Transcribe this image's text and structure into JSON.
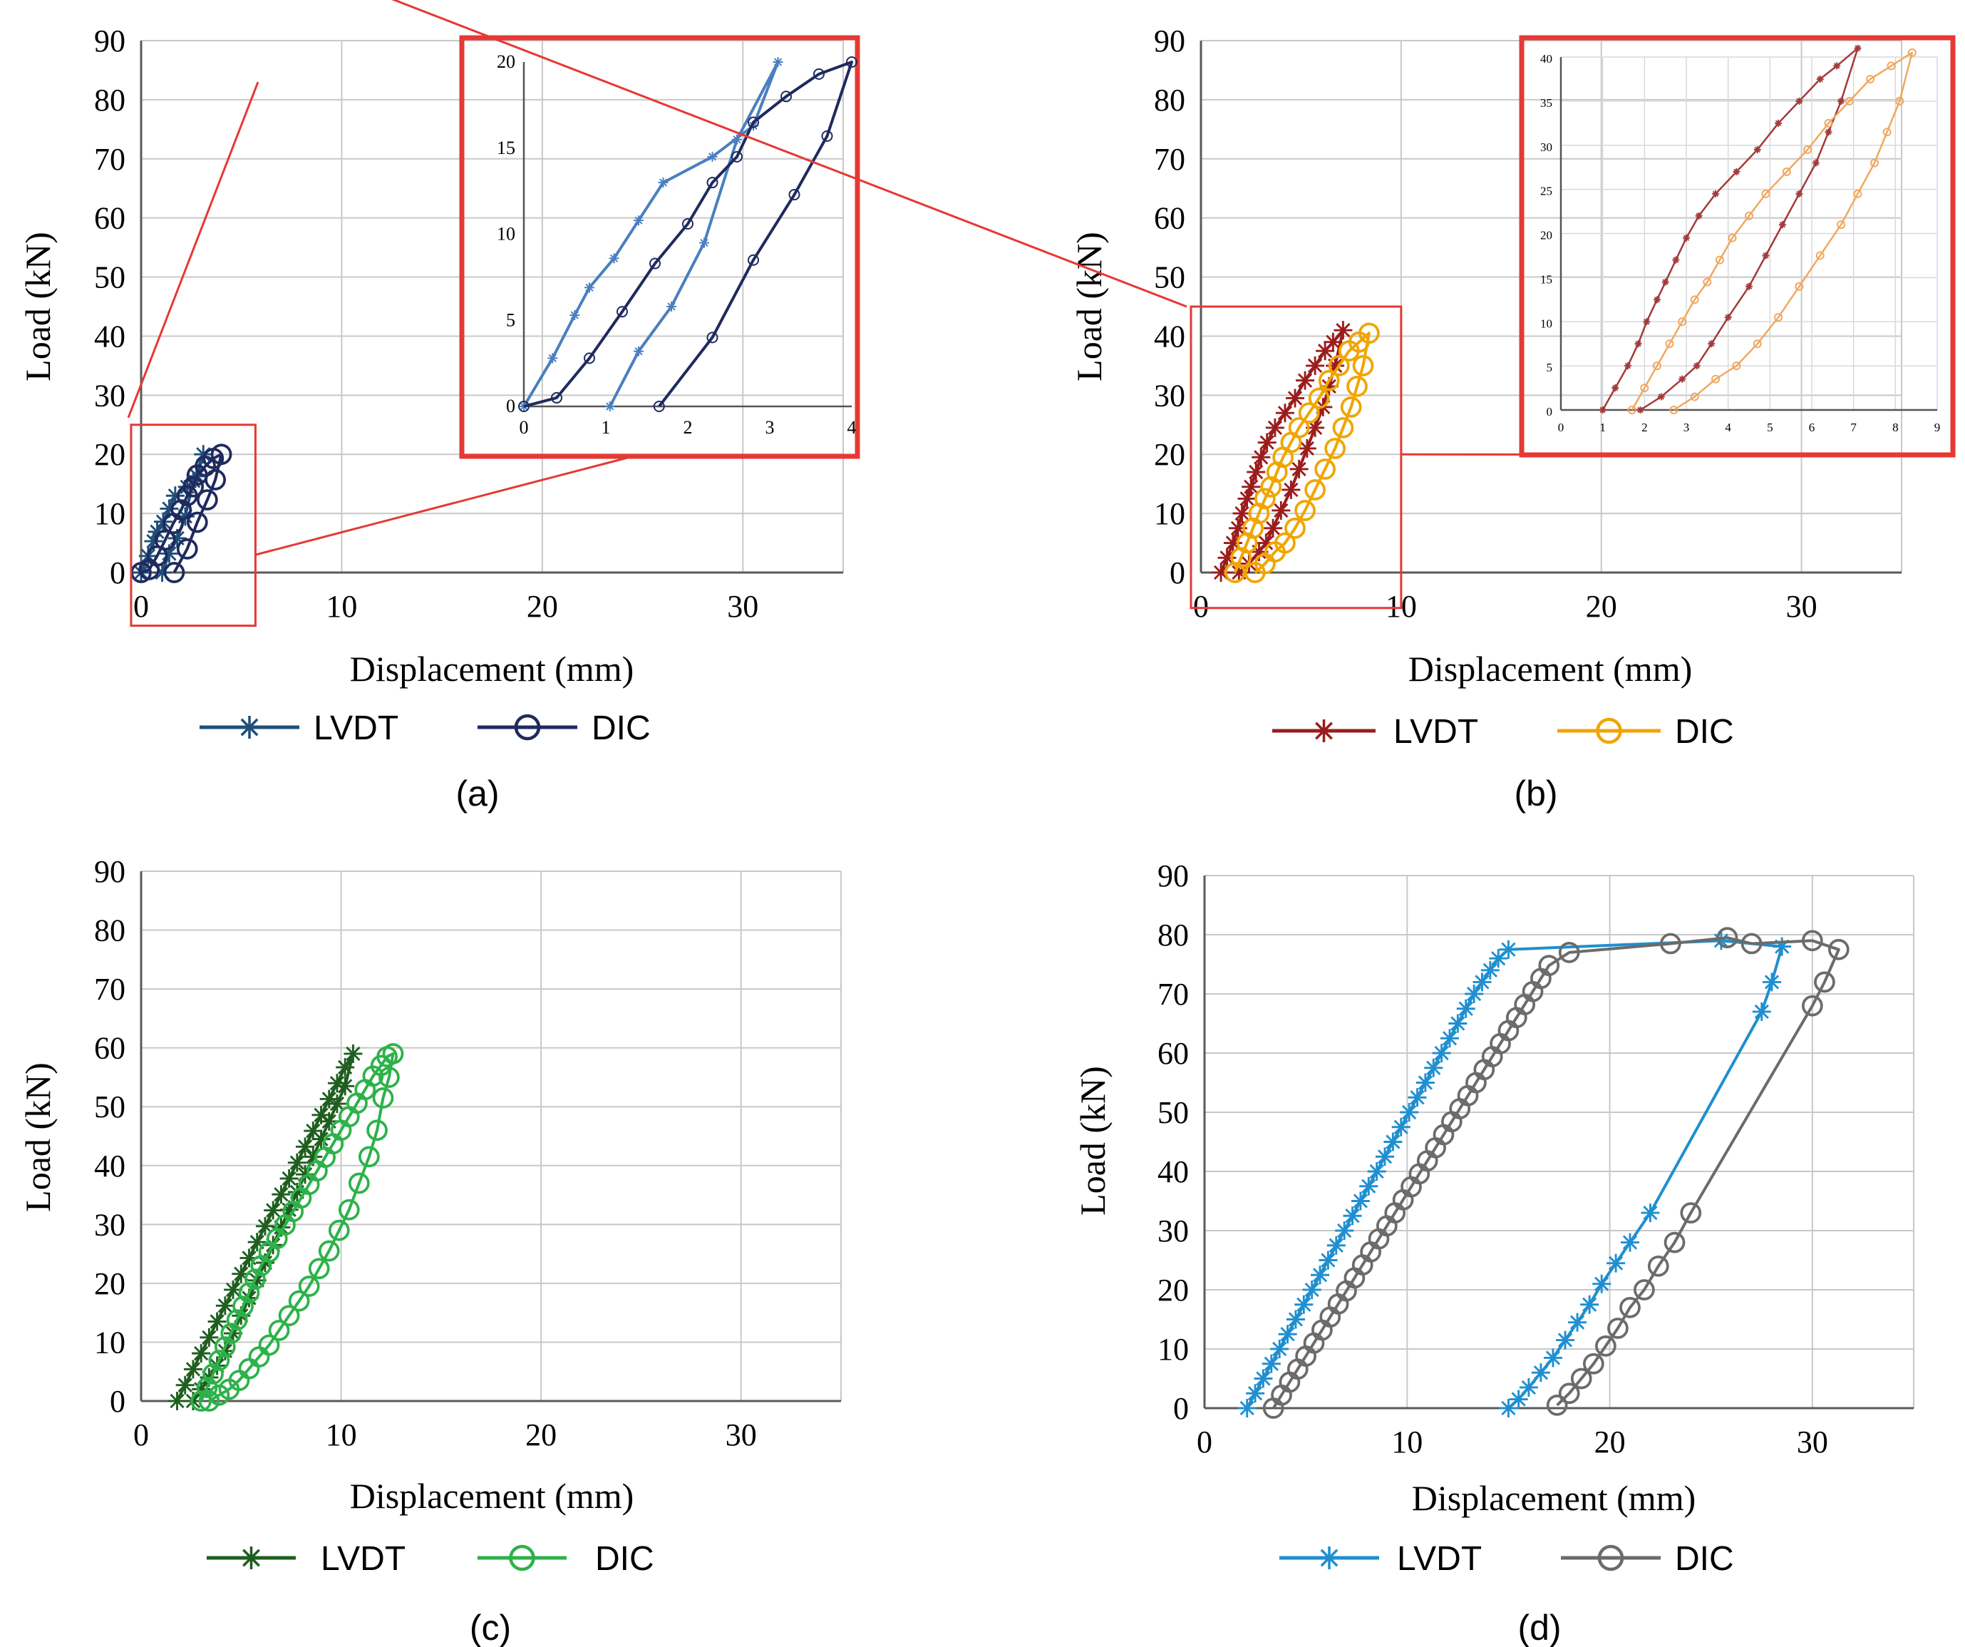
{
  "figure": {
    "captions": [
      "(a)",
      "(b)",
      "(c)",
      "(d)"
    ]
  },
  "chart_data": [
    {
      "type": "line",
      "panel": "(a)",
      "xlabel": "Displacement (mm)",
      "ylabel": "Load (kN)",
      "xlim": [
        0,
        35
      ],
      "ylim": [
        0,
        90
      ],
      "xticks": [
        0,
        10,
        20,
        30
      ],
      "yticks": [
        0,
        10,
        20,
        30,
        40,
        50,
        60,
        70,
        80,
        90
      ],
      "grid": true,
      "legend_position": "bottom",
      "series": [
        {
          "name": "LVDT",
          "marker": "asterisk",
          "color": "#1f4e79",
          "x": [
            0.0,
            0.35,
            0.62,
            0.8,
            1.1,
            1.4,
            1.7,
            2.3,
            2.8,
            3.1,
            2.6,
            2.2,
            1.8,
            1.4,
            1.05
          ],
          "y": [
            0.0,
            2.8,
            5.3,
            6.9,
            8.6,
            10.8,
            13.0,
            14.5,
            16.3,
            20.0,
            15.5,
            9.5,
            5.8,
            3.2,
            0.0
          ]
        },
        {
          "name": "DIC",
          "marker": "circle",
          "color": "#1f2a5e",
          "x": [
            0.0,
            0.4,
            0.8,
            1.2,
            1.6,
            2.0,
            2.3,
            2.6,
            2.8,
            3.2,
            3.6,
            4.0,
            3.7,
            3.3,
            2.8,
            2.3,
            1.65
          ],
          "y": [
            0.0,
            0.5,
            2.8,
            5.5,
            8.3,
            10.6,
            13.0,
            14.5,
            16.5,
            18.0,
            19.3,
            20.0,
            15.7,
            12.3,
            8.5,
            4.0,
            0.0
          ]
        }
      ],
      "inset": {
        "xlim": [
          0,
          4
        ],
        "ylim": [
          0,
          20
        ],
        "xticks": [
          0,
          1,
          2,
          3,
          4
        ],
        "yticks": [
          0,
          5,
          10,
          15,
          20
        ],
        "source_window": {
          "x": [
            -0.5,
            5.7
          ],
          "y": [
            -9,
            25
          ]
        }
      }
    },
    {
      "type": "line",
      "panel": "(b)",
      "xlabel": "Displacement (mm)",
      "ylabel": "Load (kN)",
      "xlim": [
        0,
        35
      ],
      "ylim": [
        0,
        90
      ],
      "xticks": [
        0,
        10,
        20,
        30
      ],
      "yticks": [
        0,
        10,
        20,
        30,
        40,
        50,
        60,
        70,
        80,
        90
      ],
      "grid": true,
      "legend_position": "bottom",
      "series": [
        {
          "name": "LVDT",
          "marker": "asterisk",
          "color": "#9b1c1c",
          "x": [
            1.0,
            1.3,
            1.6,
            1.85,
            2.05,
            2.3,
            2.5,
            2.75,
            3.0,
            3.3,
            3.7,
            4.2,
            4.7,
            5.2,
            5.7,
            6.2,
            6.6,
            7.1,
            6.7,
            6.4,
            6.1,
            5.7,
            5.3,
            4.9,
            4.5,
            4.0,
            3.6,
            3.25,
            2.9,
            2.4,
            1.9
          ],
          "y": [
            0.0,
            2.5,
            5.0,
            7.5,
            10.0,
            12.5,
            14.5,
            17.0,
            19.5,
            22.0,
            24.5,
            27.0,
            29.5,
            32.5,
            35.0,
            37.5,
            39.0,
            41.0,
            35.0,
            31.5,
            28.0,
            24.5,
            21.0,
            17.5,
            14.0,
            10.5,
            7.5,
            5.0,
            3.5,
            1.5,
            0.0
          ]
        },
        {
          "name": "DIC",
          "marker": "circle",
          "color": "#f0a500",
          "x": [
            1.7,
            2.0,
            2.3,
            2.6,
            2.9,
            3.2,
            3.5,
            3.8,
            4.1,
            4.5,
            4.9,
            5.4,
            5.9,
            6.4,
            6.9,
            7.4,
            7.9,
            8.4,
            8.1,
            7.8,
            7.5,
            7.1,
            6.7,
            6.2,
            5.7,
            5.2,
            4.7,
            4.2,
            3.7,
            3.2,
            2.7
          ],
          "y": [
            0.0,
            2.5,
            5.0,
            7.5,
            10.0,
            12.5,
            14.5,
            17.0,
            19.5,
            22.0,
            24.5,
            27.0,
            29.5,
            32.5,
            35.0,
            37.5,
            39.0,
            40.5,
            35.0,
            31.5,
            28.0,
            24.5,
            21.0,
            17.5,
            14.0,
            10.5,
            7.5,
            5.0,
            3.5,
            1.5,
            0.0
          ]
        }
      ],
      "inset": {
        "xlim": [
          0,
          9
        ],
        "ylim": [
          0,
          40
        ],
        "xticks": [
          0,
          1,
          2,
          3,
          4,
          5,
          6,
          7,
          8,
          9
        ],
        "yticks": [
          0,
          5,
          10,
          15,
          20,
          25,
          30,
          35,
          40
        ],
        "source_window": {
          "x": [
            -0.5,
            10
          ],
          "y": [
            -6,
            45
          ]
        }
      }
    },
    {
      "type": "line",
      "panel": "(c)",
      "xlabel": "Displacement (mm)",
      "ylabel": "Load (kN)",
      "xlim": [
        0,
        35
      ],
      "ylim": [
        0,
        90
      ],
      "xticks": [
        0,
        10,
        20,
        30
      ],
      "yticks": [
        0,
        10,
        20,
        30,
        40,
        50,
        60,
        70,
        80,
        90
      ],
      "grid": true,
      "legend_position": "bottom",
      "series": [
        {
          "name": "LVDT",
          "marker": "asterisk",
          "color": "#1e5e1e",
          "x": [
            1.8,
            2.2,
            2.6,
            3.0,
            3.4,
            3.8,
            4.2,
            4.6,
            5.0,
            5.4,
            5.8,
            6.2,
            6.6,
            7.0,
            7.4,
            7.8,
            8.2,
            8.6,
            9.0,
            9.4,
            9.8,
            10.2,
            10.6,
            10.2,
            9.8,
            9.4,
            9.0,
            8.6,
            8.2,
            7.8,
            7.4,
            7.0,
            6.6,
            6.2,
            5.8,
            5.4,
            5.0,
            4.6,
            4.2,
            3.8,
            3.4,
            3.0,
            2.6
          ],
          "y": [
            0,
            2.7,
            5.4,
            8.1,
            10.8,
            13.5,
            16.2,
            18.9,
            21.6,
            24.3,
            27.0,
            29.7,
            32.4,
            35.1,
            37.8,
            40.5,
            43.2,
            45.9,
            48.6,
            51.3,
            54.0,
            56.7,
            59.0,
            53.5,
            50.5,
            47.5,
            44.5,
            41.5,
            38.5,
            35.5,
            32.5,
            29.5,
            26.5,
            23.5,
            20.5,
            17.5,
            14.5,
            11.5,
            8.5,
            6.0,
            4.0,
            2.0,
            0.0
          ]
        },
        {
          "name": "DIC",
          "marker": "circle",
          "color": "#2db24a",
          "x": [
            3.0,
            3.3,
            3.6,
            3.9,
            4.2,
            4.5,
            4.8,
            5.1,
            5.4,
            5.7,
            6.0,
            6.4,
            6.8,
            7.2,
            7.6,
            8.0,
            8.4,
            8.8,
            9.2,
            9.6,
            10.0,
            10.4,
            10.8,
            11.2,
            11.6,
            12.0,
            12.3,
            12.6,
            12.4,
            12.1,
            11.8,
            11.4,
            10.9,
            10.4,
            9.9,
            9.4,
            8.9,
            8.4,
            7.9,
            7.4,
            6.9,
            6.4,
            5.9,
            5.4,
            4.9,
            4.4,
            3.9,
            3.4
          ],
          "y": [
            0.0,
            2.3,
            4.6,
            6.9,
            9.2,
            11.5,
            13.8,
            16.1,
            18.4,
            20.7,
            23.0,
            25.3,
            27.6,
            29.9,
            32.2,
            34.5,
            36.8,
            39.1,
            41.4,
            43.7,
            46.0,
            48.3,
            50.6,
            52.9,
            55.2,
            57.0,
            58.5,
            59.0,
            55.0,
            51.5,
            46.0,
            41.5,
            37.0,
            32.5,
            29.0,
            25.5,
            22.5,
            19.5,
            17.0,
            14.5,
            12.0,
            9.5,
            7.5,
            5.5,
            3.5,
            2.0,
            1.0,
            0.0
          ]
        }
      ]
    },
    {
      "type": "line",
      "panel": "(d)",
      "xlabel": "Displacement (mm)",
      "ylabel": "Load (kN)",
      "xlim": [
        0,
        35
      ],
      "ylim": [
        0,
        90
      ],
      "xticks": [
        0,
        10,
        20,
        30
      ],
      "yticks": [
        0,
        10,
        20,
        30,
        40,
        50,
        60,
        70,
        80,
        90
      ],
      "grid": true,
      "legend_position": "bottom",
      "series": [
        {
          "name": "LVDT",
          "marker": "asterisk",
          "color": "#1f8fd0",
          "x": [
            2.1,
            2.5,
            2.9,
            3.3,
            3.7,
            4.1,
            4.5,
            4.9,
            5.3,
            5.7,
            6.1,
            6.5,
            6.9,
            7.3,
            7.7,
            8.1,
            8.5,
            8.9,
            9.3,
            9.7,
            10.1,
            10.5,
            10.9,
            11.3,
            11.7,
            12.1,
            12.5,
            12.9,
            13.3,
            13.7,
            14.1,
            14.5,
            15.0,
            25.5,
            28.5,
            28.0,
            27.5,
            22.0,
            21.0,
            20.3,
            19.6,
            19.0,
            18.4,
            17.8,
            17.2,
            16.6,
            16.0,
            15.5,
            15.0
          ],
          "y": [
            0,
            2.5,
            5.0,
            7.5,
            10.0,
            12.5,
            15.0,
            17.5,
            20.0,
            22.5,
            25.0,
            27.5,
            30.0,
            32.5,
            35.0,
            37.5,
            40.0,
            42.5,
            45.0,
            47.5,
            50.0,
            52.5,
            55.0,
            57.5,
            60.0,
            62.5,
            65.0,
            67.5,
            70.0,
            72.0,
            74.0,
            76.0,
            77.5,
            79.0,
            78.0,
            72.0,
            67.0,
            33.0,
            28.0,
            24.5,
            21.0,
            17.5,
            14.5,
            11.5,
            8.5,
            6.0,
            3.5,
            1.5,
            0.0
          ]
        },
        {
          "name": "DIC",
          "marker": "circle",
          "color": "#6b6b6b",
          "x": [
            3.4,
            3.8,
            4.2,
            4.6,
            5.0,
            5.4,
            5.8,
            6.2,
            6.6,
            7.0,
            7.4,
            7.8,
            8.2,
            8.6,
            9.0,
            9.4,
            9.8,
            10.2,
            10.6,
            11.0,
            11.4,
            11.8,
            12.2,
            12.6,
            13.0,
            13.4,
            13.8,
            14.2,
            14.6,
            15.0,
            15.4,
            15.8,
            16.2,
            16.6,
            17.0,
            18.0,
            23.0,
            25.8,
            27.0,
            30.0,
            31.3,
            30.6,
            30.0,
            24.0,
            23.2,
            22.4,
            21.7,
            21.0,
            20.4,
            19.8,
            19.2,
            18.6,
            18.0,
            17.4
          ],
          "y": [
            0,
            2.2,
            4.4,
            6.6,
            8.8,
            11.0,
            13.2,
            15.4,
            17.6,
            19.8,
            22.0,
            24.2,
            26.4,
            28.6,
            30.8,
            33.0,
            35.2,
            37.4,
            39.6,
            41.8,
            44.0,
            46.2,
            48.4,
            50.6,
            52.8,
            55.0,
            57.2,
            59.4,
            61.6,
            63.8,
            66.0,
            68.2,
            70.4,
            72.6,
            74.8,
            77.0,
            78.5,
            79.5,
            78.5,
            79.0,
            77.5,
            72.0,
            68.0,
            33.0,
            28.0,
            24.0,
            20.0,
            17.0,
            13.5,
            10.5,
            7.5,
            5.0,
            2.5,
            0.5
          ]
        }
      ]
    }
  ]
}
